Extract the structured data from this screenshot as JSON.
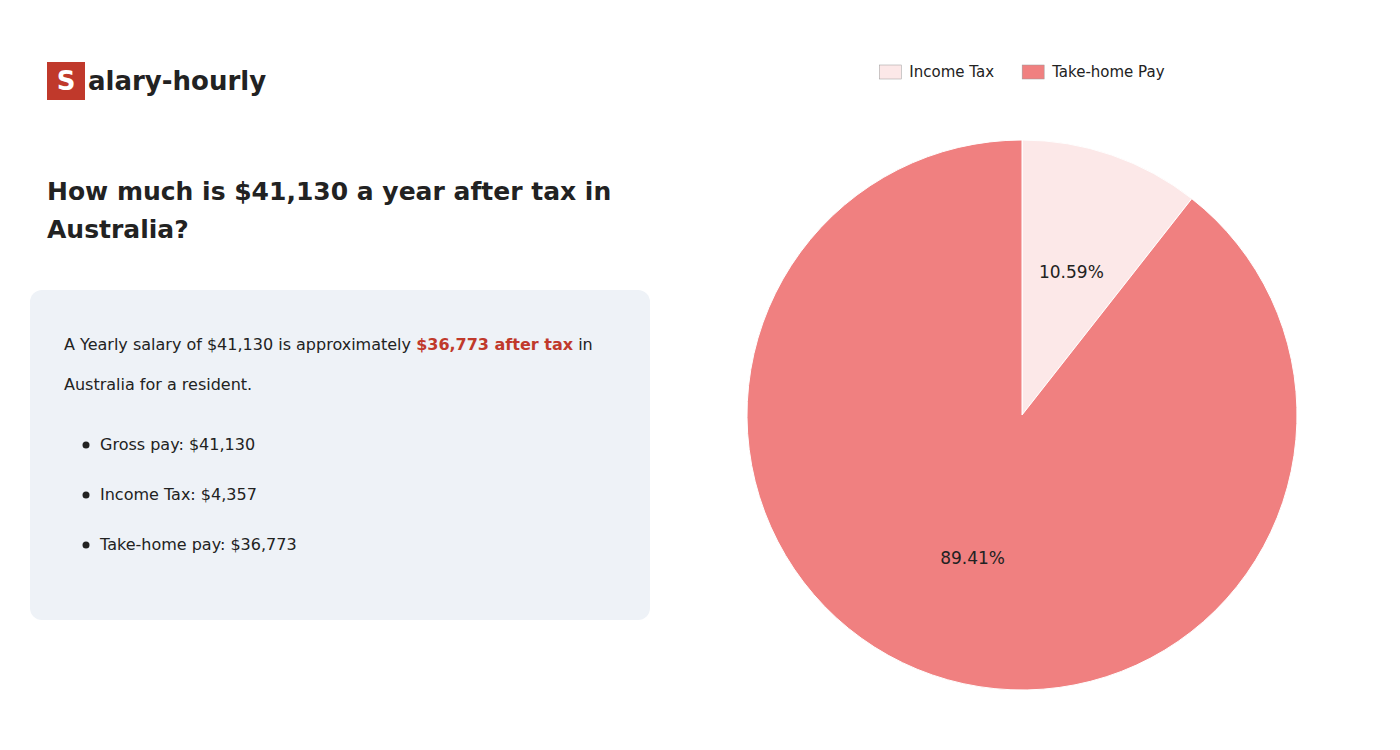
{
  "chart_data": {
    "type": "pie",
    "title": "How much is $41,130 a year after tax in\nAustralia?",
    "categories": [
      "Income Tax",
      "Take-home Pay"
    ],
    "values": [
      10.59,
      89.41
    ],
    "value_labels": [
      "10.59%",
      "89.41%"
    ],
    "colors": [
      "#fce8e8",
      "#f08080"
    ],
    "data_labels": true,
    "legend": "top",
    "annotations": [
      {
        "text": "S",
        "color": "#c0392b"
      },
      {
        "text": "alary-hourly"
      },
      {
        "text": "A Yearly salary of $41,130 is approximately "
      },
      {
        "text": "$36,773 after tax",
        "color": "#c0392b"
      },
      {
        "text": " in"
      },
      {
        "text": "Australia for a resident."
      },
      {
        "text": "Gross pay: $41,130"
      },
      {
        "text": "Income Tax: $4,357"
      },
      {
        "text": "Take-home pay: $36,773"
      }
    ]
  }
}
